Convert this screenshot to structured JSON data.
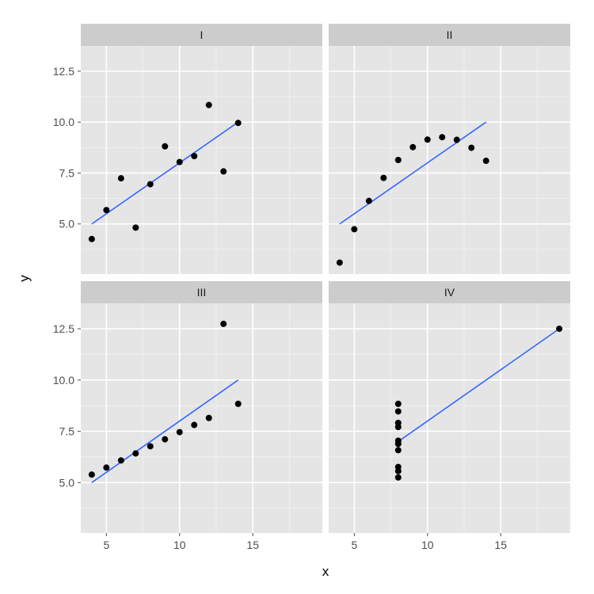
{
  "chart_data": {
    "type": "scatter",
    "facet_layout": "2x2 grid, shared axes",
    "xlabel": "x",
    "ylabel": "y",
    "xlim": [
      3.25,
      19.75
    ],
    "ylim": [
      2.54,
      13.74
    ],
    "x_ticks": [
      5,
      10,
      15
    ],
    "y_ticks": [
      5.0,
      7.5,
      10.0,
      12.5
    ],
    "x_tick_labels": [
      "5",
      "10",
      "15"
    ],
    "y_tick_labels": [
      "5.0",
      "7.5",
      "10.0",
      "12.5"
    ],
    "grid": true,
    "colors": {
      "panel_bg": "#e5e5e5",
      "strip_bg": "#cccccc",
      "grid_major": "#ffffff",
      "grid_minor": "#f2f2f2",
      "point": "#000000",
      "fit_line": "#3366ff"
    },
    "panels": [
      {
        "label": "I",
        "points": [
          [
            10,
            8.04
          ],
          [
            8,
            6.95
          ],
          [
            13,
            7.58
          ],
          [
            9,
            8.81
          ],
          [
            11,
            8.33
          ],
          [
            14,
            9.96
          ],
          [
            6,
            7.24
          ],
          [
            4,
            4.26
          ],
          [
            12,
            10.84
          ],
          [
            7,
            4.82
          ],
          [
            5,
            5.68
          ]
        ],
        "fit_line": [
          [
            4,
            5.0
          ],
          [
            14,
            10.0
          ]
        ]
      },
      {
        "label": "II",
        "points": [
          [
            10,
            9.14
          ],
          [
            8,
            8.14
          ],
          [
            13,
            8.74
          ],
          [
            9,
            8.77
          ],
          [
            11,
            9.26
          ],
          [
            14,
            8.1
          ],
          [
            6,
            6.13
          ],
          [
            4,
            3.1
          ],
          [
            12,
            9.13
          ],
          [
            7,
            7.26
          ],
          [
            5,
            4.74
          ]
        ],
        "fit_line": [
          [
            4,
            5.0
          ],
          [
            14,
            10.0
          ]
        ]
      },
      {
        "label": "III",
        "points": [
          [
            10,
            7.46
          ],
          [
            8,
            6.77
          ],
          [
            13,
            12.74
          ],
          [
            9,
            7.11
          ],
          [
            11,
            7.81
          ],
          [
            14,
            8.84
          ],
          [
            6,
            6.08
          ],
          [
            4,
            5.39
          ],
          [
            12,
            8.15
          ],
          [
            7,
            6.42
          ],
          [
            5,
            5.73
          ]
        ],
        "fit_line": [
          [
            4,
            5.0
          ],
          [
            14,
            10.0
          ]
        ]
      },
      {
        "label": "IV",
        "points": [
          [
            8,
            6.58
          ],
          [
            8,
            5.76
          ],
          [
            8,
            7.71
          ],
          [
            8,
            8.84
          ],
          [
            8,
            8.47
          ],
          [
            8,
            7.04
          ],
          [
            8,
            5.25
          ],
          [
            19,
            12.5
          ],
          [
            8,
            5.56
          ],
          [
            8,
            7.91
          ],
          [
            8,
            6.89
          ]
        ],
        "fit_line": [
          [
            8,
            7.0
          ],
          [
            19,
            12.5
          ]
        ]
      }
    ]
  }
}
